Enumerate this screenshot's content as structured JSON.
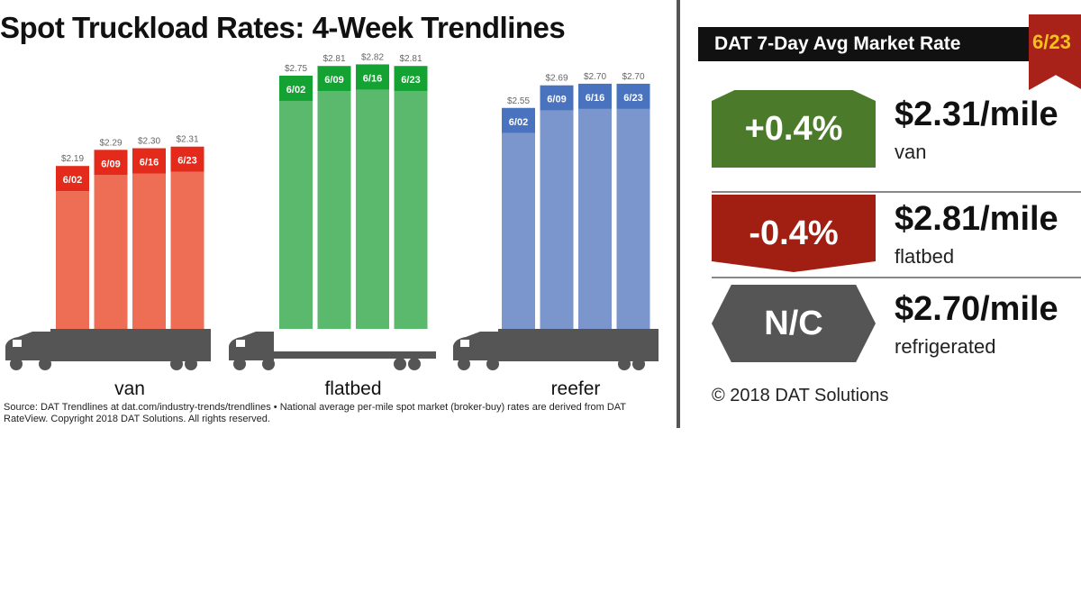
{
  "title": "Spot Truckload Rates: 4-Week Trendlines",
  "source": "Source: DAT Trendlines at dat.com/industry-trends/trendlines • National average per-mile spot market (broker-buy) rates are derived from DAT RateView. Copyright 2018 DAT Solutions. All rights reserved.",
  "chart_data": {
    "type": "bar",
    "categories": [
      "6/02",
      "6/09",
      "6/16",
      "6/23"
    ],
    "groups": [
      {
        "name": "van",
        "values": [
          2.19,
          2.29,
          2.3,
          2.31
        ],
        "labels": [
          "$2.19",
          "$2.29",
          "$2.30",
          "$2.31"
        ],
        "color": "#ee6e55",
        "cap_color": "#e42a1a"
      },
      {
        "name": "flatbed",
        "values": [
          2.75,
          2.81,
          2.82,
          2.81
        ],
        "labels": [
          "$2.75",
          "$2.81",
          "$2.82",
          "$2.81"
        ],
        "color": "#5ab96c",
        "cap_color": "#14a233"
      },
      {
        "name": "reefer",
        "values": [
          2.55,
          2.69,
          2.7,
          2.7
        ],
        "labels": [
          "$2.55",
          "$2.69",
          "$2.70",
          "$2.70"
        ],
        "color": "#7b96cc",
        "cap_color": "#4a73bf"
      }
    ]
  },
  "panel": {
    "header": "DAT 7-Day Avg Market Rate",
    "date": "6/23",
    "rows": [
      {
        "change": "+0.4%",
        "rate": "$2.31/mile",
        "type": "van",
        "color": "#4a7a2a"
      },
      {
        "change": "-0.4%",
        "rate": "$2.81/mile",
        "type": "flatbed",
        "color": "#a11f12"
      },
      {
        "change": "N/C",
        "rate": "$2.70/mile",
        "type": "refrigerated",
        "color": "#555555"
      }
    ],
    "copyright": "© 2018 DAT Solutions"
  }
}
